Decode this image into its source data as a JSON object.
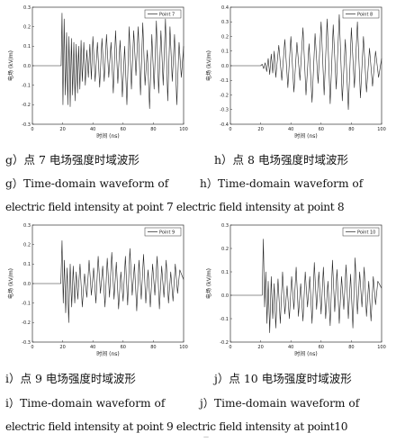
{
  "chart_data": [
    {
      "type": "line",
      "panel": "g",
      "legend": "Point 7",
      "legend_position": "top-right",
      "ylabel": "电场 (kV/m)",
      "xlabel": "时间 (ns)",
      "xlim": [
        0,
        100
      ],
      "ylim": [
        -0.3,
        0.3
      ],
      "xticks": [
        "0",
        "20",
        "40",
        "60",
        "80",
        "100"
      ],
      "yticks": [
        "0.3",
        "0.2",
        "0.1",
        "0.0",
        "-0.1",
        "-0.2",
        "-0.3"
      ],
      "series": [
        {
          "color": "#222222",
          "x": [
            0,
            18,
            19,
            19.6,
            20.2,
            21,
            21.8,
            22.6,
            23.4,
            24.2,
            25,
            25.8,
            26.6,
            27.4,
            28.2,
            29,
            29.8,
            30.6,
            31.4,
            32.2,
            33,
            34,
            35,
            36,
            37,
            38,
            39,
            40,
            41.5,
            43,
            44.5,
            46,
            47.5,
            49,
            50.5,
            52,
            53.5,
            55,
            56.5,
            58,
            59.5,
            61,
            62.5,
            64,
            65.5,
            67,
            68.5,
            70,
            71.5,
            73,
            74.5,
            76,
            77.5,
            79,
            80.5,
            82,
            83.5,
            85,
            86.5,
            88,
            89.5,
            91,
            92.5,
            94,
            95.5,
            97,
            98.5,
            100
          ],
          "y": [
            0,
            0,
            0,
            0.27,
            -0.2,
            0.24,
            -0.15,
            0.17,
            -0.2,
            0.15,
            -0.21,
            0.14,
            -0.15,
            0.12,
            -0.18,
            0.11,
            -0.14,
            0.1,
            -0.12,
            0.13,
            -0.08,
            0.12,
            -0.1,
            0.08,
            -0.06,
            0.11,
            -0.07,
            0.15,
            -0.08,
            0.12,
            -0.11,
            0.14,
            -0.08,
            0.16,
            -0.06,
            0.12,
            -0.14,
            0.18,
            -0.09,
            0.13,
            -0.16,
            0.1,
            -0.2,
            0.2,
            -0.12,
            0.18,
            -0.05,
            0.2,
            -0.15,
            0.22,
            -0.1,
            0.08,
            -0.22,
            0.16,
            -0.12,
            0.23,
            -0.14,
            0.18,
            -0.1,
            0.24,
            -0.18,
            0.2,
            -0.08,
            0.16,
            -0.2,
            0.12,
            -0.06,
            0.1
          ]
        }
      ]
    },
    {
      "type": "line",
      "panel": "h",
      "legend": "Point 8",
      "legend_position": "top-right",
      "ylabel": "电场 (kV/m)",
      "xlabel": "时间 (ns)",
      "xlim": [
        0,
        100
      ],
      "ylim": [
        -0.4,
        0.4
      ],
      "xticks": [
        "0",
        "20",
        "40",
        "60",
        "80",
        "100"
      ],
      "yticks": [
        "0.4",
        "0.3",
        "0.2",
        "0.1",
        "0.0",
        "-0.1",
        "-0.2",
        "-0.3",
        "-0.4"
      ],
      "series": [
        {
          "color": "#222222",
          "x": [
            0,
            20,
            21,
            22,
            23,
            24,
            25,
            26,
            27,
            28,
            29,
            30,
            32,
            34,
            36,
            38,
            40,
            42,
            44,
            46,
            48,
            50,
            52,
            54,
            56,
            58,
            60,
            62,
            64,
            66,
            68,
            70,
            72,
            74,
            76,
            78,
            80,
            82,
            84,
            86,
            88,
            90,
            92,
            94,
            96,
            98,
            100
          ],
          "y": [
            0,
            0,
            0.01,
            -0.02,
            0.02,
            -0.04,
            0.05,
            -0.06,
            0.08,
            -0.05,
            0.1,
            -0.08,
            0.14,
            -0.1,
            0.18,
            -0.15,
            0.2,
            -0.18,
            0.16,
            -0.1,
            0.26,
            -0.2,
            0.15,
            -0.25,
            0.22,
            -0.12,
            0.3,
            -0.2,
            0.32,
            -0.26,
            0.28,
            -0.16,
            0.35,
            -0.24,
            0.18,
            -0.3,
            0.26,
            -0.15,
            0.3,
            -0.22,
            0.2,
            -0.18,
            0.12,
            -0.14,
            0.1,
            -0.08,
            0.05
          ]
        }
      ]
    },
    {
      "type": "line",
      "panel": "i",
      "legend": "Point 9",
      "legend_position": "top-right",
      "ylabel": "电场 (kV/m)",
      "xlabel": "时间 (ns)",
      "xlim": [
        0,
        100
      ],
      "ylim": [
        -0.3,
        0.3
      ],
      "xticks": [
        "0",
        "20",
        "40",
        "60",
        "80",
        "100"
      ],
      "yticks": [
        "0.3",
        "0.2",
        "0.1",
        "0.0",
        "-0.1",
        "-0.2",
        "-0.3"
      ],
      "series": [
        {
          "color": "#222222",
          "x": [
            0,
            18,
            18.8,
            19.6,
            20.4,
            21.2,
            22,
            23,
            24,
            25,
            26,
            27,
            28,
            29,
            30,
            31.5,
            33,
            34.5,
            36,
            37.5,
            39,
            40.5,
            42,
            43.5,
            45,
            46.5,
            48,
            49.5,
            51,
            52.5,
            54,
            55.5,
            57,
            58.5,
            60,
            61.5,
            63,
            64.5,
            66,
            67.5,
            69,
            70.5,
            72,
            73.5,
            75,
            76.5,
            78,
            79.5,
            81,
            82.5,
            84,
            85.5,
            87,
            88.5,
            90,
            91.5,
            93,
            94.5,
            96,
            97.5,
            100
          ],
          "y": [
            0,
            0,
            0,
            0.22,
            -0.1,
            0.12,
            -0.15,
            0.08,
            -0.2,
            0.1,
            -0.12,
            0.09,
            -0.1,
            0.06,
            -0.08,
            0.1,
            -0.12,
            0.05,
            -0.07,
            0.12,
            -0.06,
            0.08,
            -0.1,
            0.14,
            -0.05,
            0.09,
            -0.12,
            0.13,
            -0.07,
            0.16,
            -0.08,
            0.11,
            -0.13,
            0.06,
            -0.09,
            0.14,
            -0.11,
            0.18,
            -0.06,
            0.1,
            -0.14,
            0.12,
            -0.08,
            0.15,
            -0.1,
            0.07,
            -0.12,
            0.1,
            -0.06,
            0.14,
            -0.13,
            0.09,
            -0.07,
            0.12,
            -0.1,
            0.06,
            -0.09,
            0.1,
            -0.05,
            0.07,
            0.02
          ]
        }
      ]
    },
    {
      "type": "line",
      "panel": "j",
      "legend": "Point 10",
      "legend_position": "top-right",
      "ylabel": "电场 (kV/m)",
      "xlabel": "时间 (ns)",
      "xlim": [
        0,
        100
      ],
      "ylim": [
        -0.2,
        0.3
      ],
      "xticks": [
        "0",
        "20",
        "40",
        "60",
        "80",
        "100"
      ],
      "yticks": [
        "0.3",
        "0.2",
        "0.1",
        "0.0",
        "-0.1",
        "-0.2"
      ],
      "series": [
        {
          "color": "#222222",
          "x": [
            0,
            20,
            21,
            21.8,
            22.6,
            23.4,
            24.2,
            25,
            26,
            27,
            28,
            29,
            30,
            31.5,
            33,
            34.5,
            36,
            37.5,
            39,
            40.5,
            42,
            43.5,
            45,
            46.5,
            48,
            49.5,
            51,
            52.5,
            54,
            55.5,
            57,
            58.5,
            60,
            61.5,
            63,
            64.5,
            66,
            67.5,
            69,
            70.5,
            72,
            73.5,
            75,
            76.5,
            78,
            79.5,
            81,
            82.5,
            84,
            85.5,
            87,
            88.5,
            90,
            91.5,
            93,
            94.5,
            96,
            97.5,
            100
          ],
          "y": [
            0,
            0,
            0,
            0.24,
            -0.05,
            0.1,
            -0.12,
            0.06,
            -0.16,
            0.08,
            -0.1,
            0.05,
            -0.14,
            0.07,
            -0.12,
            0.1,
            -0.08,
            0.04,
            -0.1,
            0.08,
            -0.06,
            0.12,
            -0.09,
            0.05,
            -0.11,
            0.1,
            -0.05,
            0.08,
            -0.12,
            0.14,
            -0.06,
            0.1,
            -0.08,
            0.12,
            -0.1,
            0.06,
            -0.13,
            0.15,
            -0.07,
            0.11,
            -0.12,
            0.08,
            -0.06,
            0.13,
            -0.1,
            0.09,
            -0.14,
            0.16,
            -0.08,
            0.1,
            -0.05,
            0.12,
            -0.09,
            0.06,
            -0.11,
            0.08,
            -0.04,
            0.06,
            0.03
          ]
        }
      ]
    }
  ],
  "captions": {
    "g_cn": "g）点 7 电场强度时域波形",
    "h_cn": "h）点 8 电场强度时域波形",
    "gh_en_line1_left": "g）Time-domain waveform of",
    "gh_en_line1_right": "h）Time-domain waveform of",
    "gh_en_line2": "electric field intensity at point 7 electric field intensity at point 8",
    "i_cn": "i）点 9 电场强度时域波形",
    "j_cn": "j）点 10 电场强度时域波形",
    "ij_en_line1_left": "i）Time-domain waveform of",
    "ij_en_line1_right": "j）Time-domain waveform of",
    "ij_en_line2": "electric field intensity at point 9 electric field intensity at point10"
  },
  "footer_mark": "—"
}
